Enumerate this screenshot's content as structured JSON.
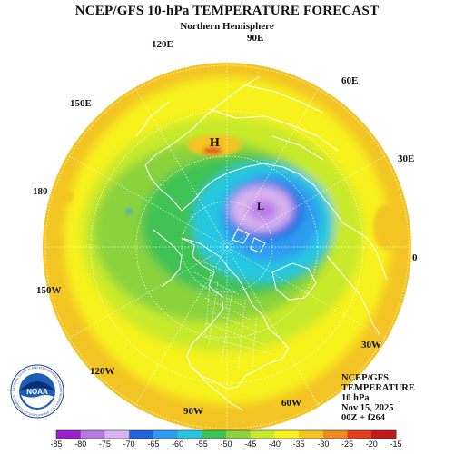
{
  "title": "NCEP/GFS 10-hPa TEMPERATURE FORECAST",
  "subtitle": "Northern Hemisphere",
  "longitude_labels": [
    "90E",
    "60E",
    "30E",
    "0",
    "30W",
    "60W",
    "90W",
    "120W",
    "150W",
    "180",
    "150E",
    "120E"
  ],
  "pressure_centers": [
    {
      "label": "H",
      "kind": "high"
    },
    {
      "label": "L",
      "kind": "low"
    }
  ],
  "info_block": [
    "NCEP/GFS",
    "TEMPERATURE",
    "10 hPa",
    "Nov 15, 2025",
    "00Z + f264"
  ],
  "colorbar": {
    "ticks": [
      "-85",
      "-80",
      "-75",
      "-70",
      "-65",
      "-60",
      "-55",
      "-50",
      "-45",
      "-40",
      "-35",
      "-30",
      "-25",
      "-20",
      "-15"
    ],
    "colors": [
      "#9b1fd1",
      "#b878e6",
      "#d9b3f0",
      "#1e63e0",
      "#2f9cf0",
      "#27c7e0",
      "#3fc255",
      "#8ad33c",
      "#c8ea2c",
      "#f7f21e",
      "#f3c524",
      "#f08a1e",
      "#e43c1c",
      "#c21a1a"
    ]
  },
  "logo": {
    "text": "NOAA",
    "ring_text": "NATIONAL OCEANIC AND ATMOSPHERIC ADMINISTRATION • U.S. DEPARTMENT OF COMMERCE"
  },
  "colors": {
    "map_lines": "#ffffff",
    "grid": "#ffffff",
    "h_patch": "#e8541c"
  }
}
